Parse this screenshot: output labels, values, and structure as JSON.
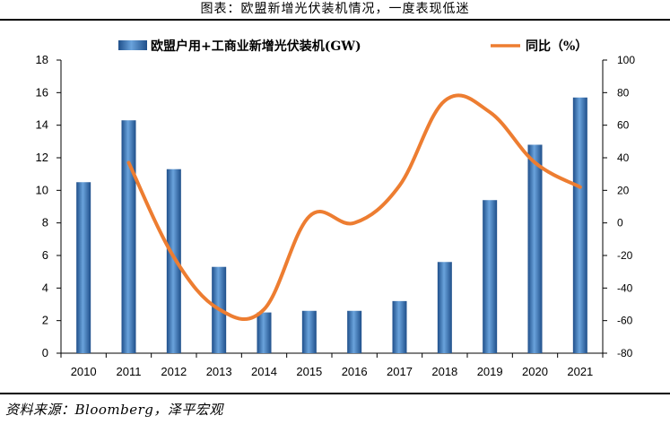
{
  "caption": "图表：欧盟新增光伏装机情况，一度表现低迷",
  "source": "资料来源：Bloomberg，泽平宏观",
  "colors": {
    "bar": "#3a78b8",
    "line": "#ed7d31"
  },
  "chart_data": {
    "type": "bar+line",
    "categories": [
      "2010",
      "2011",
      "2012",
      "2013",
      "2014",
      "2015",
      "2016",
      "2017",
      "2018",
      "2019",
      "2020",
      "2021"
    ],
    "series": [
      {
        "name": "欧盟户用+工商业新增光伏装机(GW)",
        "type": "bar",
        "axis": "left",
        "values": [
          10.5,
          14.3,
          11.3,
          5.3,
          2.5,
          2.6,
          2.6,
          3.2,
          5.6,
          9.4,
          12.8,
          15.7
        ]
      },
      {
        "name": "同比（%）",
        "type": "line",
        "axis": "right",
        "x": [
          "2011",
          "2012",
          "2013",
          "2014",
          "2015",
          "2016",
          "2017",
          "2018",
          "2019",
          "2020",
          "2021"
        ],
        "values": [
          37,
          -21,
          -53,
          -53,
          4,
          0,
          23,
          75,
          68,
          37,
          22
        ]
      }
    ],
    "yleft": {
      "lim": [
        0,
        18
      ],
      "ticks": [
        0,
        2,
        4,
        6,
        8,
        10,
        12,
        14,
        16,
        18
      ]
    },
    "yright": {
      "lim": [
        -80,
        100
      ],
      "ticks": [
        -80,
        -60,
        -40,
        -20,
        0,
        20,
        40,
        60,
        80,
        100
      ]
    },
    "legend_position": "top",
    "grid": false
  }
}
